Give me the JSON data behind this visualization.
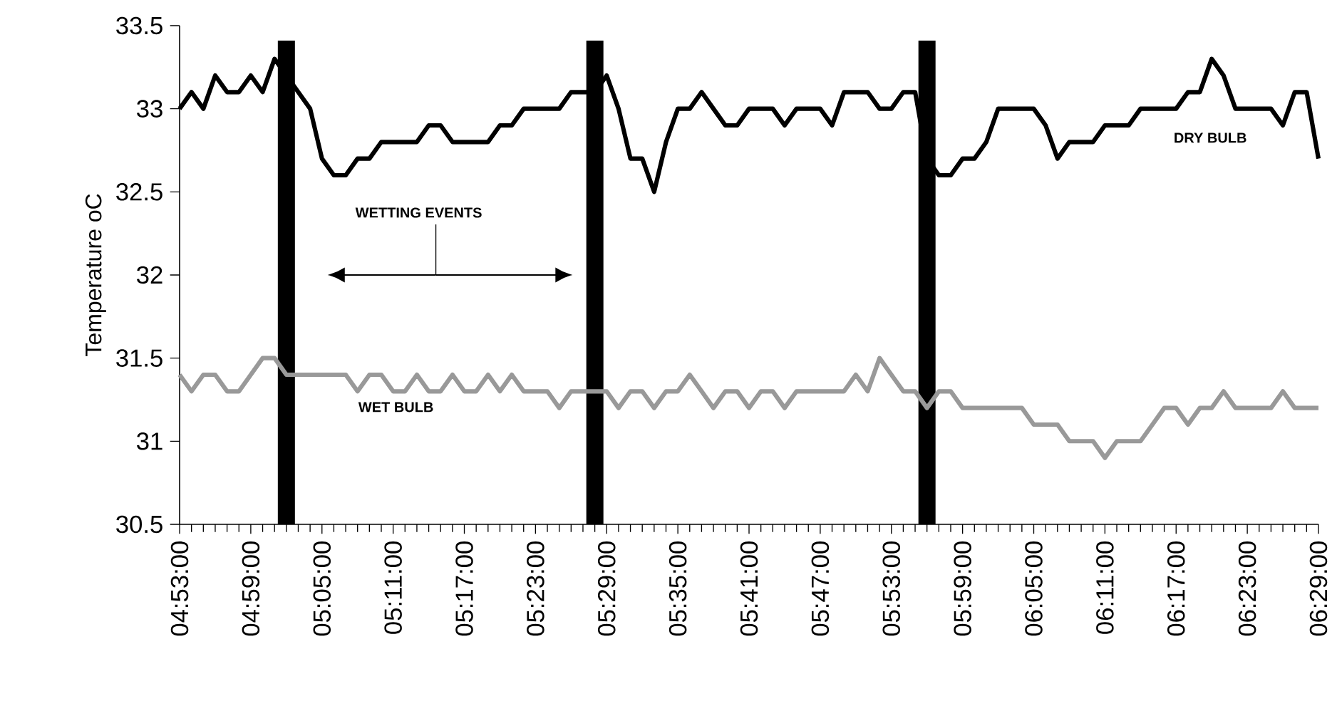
{
  "chart_data": {
    "type": "line",
    "ylabel": "Temperature oC",
    "x": [
      4.8833,
      4.9,
      4.9167,
      4.9333,
      4.95,
      4.9667,
      4.9833,
      5,
      5.0167,
      5.0333,
      5.05,
      5.0667,
      5.0833,
      5.1,
      5.1167,
      5.1333,
      5.15,
      5.1667,
      5.1833,
      5.2,
      5.2167,
      5.2333,
      5.25,
      5.2667,
      5.2833,
      5.3,
      5.3167,
      5.3333,
      5.35,
      5.3667,
      5.3833,
      5.4,
      5.4167,
      5.4333,
      5.45,
      5.4667,
      5.4833,
      5.5,
      5.5167,
      5.5333,
      5.55,
      5.5667,
      5.5833,
      5.6,
      5.6167,
      5.6333,
      5.65,
      5.6667,
      5.6833,
      5.7,
      5.7167,
      5.7333,
      5.75,
      5.7667,
      5.7833,
      5.8,
      5.8167,
      5.8333,
      5.85,
      5.8667,
      5.8833,
      5.9,
      5.9167,
      5.9333,
      5.95,
      5.9667,
      5.9833,
      6,
      6.0167,
      6.0333,
      6.05,
      6.0667,
      6.0833,
      6.1,
      6.1167,
      6.1333,
      6.15,
      6.1667,
      6.1833,
      6.2,
      6.2167,
      6.2333,
      6.25,
      6.2667,
      6.2833,
      6.3,
      6.3167,
      6.3333,
      6.35,
      6.3667,
      6.3833,
      6.4,
      6.4167,
      6.4333,
      6.45,
      6.4667,
      6.4833
    ],
    "series": [
      {
        "name": "DRY BULB",
        "color": "#000000",
        "values": [
          33.0,
          33.1,
          33.0,
          33.2,
          33.1,
          33.1,
          33.2,
          33.1,
          33.3,
          33.2,
          33.1,
          33.0,
          32.7,
          32.6,
          32.6,
          32.7,
          32.7,
          32.8,
          32.8,
          32.8,
          32.8,
          32.9,
          32.9,
          32.8,
          32.8,
          32.8,
          32.8,
          32.9,
          32.9,
          33.0,
          33.0,
          33.0,
          33.0,
          33.1,
          33.1,
          33.1,
          33.2,
          33.0,
          32.7,
          32.7,
          32.5,
          32.8,
          33.0,
          33.0,
          33.1,
          33.0,
          32.9,
          32.9,
          33.0,
          33.0,
          33.0,
          32.9,
          33.0,
          33.0,
          33.0,
          32.9,
          33.1,
          33.1,
          33.1,
          33.0,
          33.0,
          33.1,
          33.1,
          32.7,
          32.6,
          32.6,
          32.7,
          32.7,
          32.8,
          33.0,
          33.0,
          33.0,
          33.0,
          32.9,
          32.7,
          32.8,
          32.8,
          32.8,
          32.9,
          32.9,
          32.9,
          33.0,
          33.0,
          33.0,
          33.0,
          33.1,
          33.1,
          33.3,
          33.2,
          33.0,
          33.0,
          33.0,
          33.0,
          32.9,
          33.1,
          33.1,
          32.7
        ]
      },
      {
        "name": "WET BULB",
        "color": "#999999",
        "values": [
          31.4,
          31.3,
          31.4,
          31.4,
          31.3,
          31.3,
          31.4,
          31.5,
          31.5,
          31.4,
          31.4,
          31.4,
          31.4,
          31.4,
          31.4,
          31.3,
          31.4,
          31.4,
          31.3,
          31.3,
          31.4,
          31.3,
          31.3,
          31.4,
          31.3,
          31.3,
          31.4,
          31.3,
          31.4,
          31.3,
          31.3,
          31.3,
          31.2,
          31.3,
          31.3,
          31.3,
          31.3,
          31.2,
          31.3,
          31.3,
          31.2,
          31.3,
          31.3,
          31.4,
          31.3,
          31.2,
          31.3,
          31.3,
          31.2,
          31.3,
          31.3,
          31.2,
          31.3,
          31.3,
          31.3,
          31.3,
          31.3,
          31.4,
          31.3,
          31.5,
          31.4,
          31.3,
          31.3,
          31.2,
          31.3,
          31.3,
          31.2,
          31.2,
          31.2,
          31.2,
          31.2,
          31.2,
          31.1,
          31.1,
          31.1,
          31.0,
          31.0,
          31.0,
          30.9,
          31.0,
          31.0,
          31.0,
          31.1,
          31.2,
          31.2,
          31.1,
          31.2,
          31.2,
          31.3,
          31.2,
          31.2,
          31.2,
          31.2,
          31.3,
          31.2,
          31.2,
          31.2
        ]
      }
    ],
    "xlim": [
      4.8833,
      6.4833
    ],
    "xticks": [
      {
        "value": 4.8833,
        "label": "04:53:00"
      },
      {
        "value": 4.9833,
        "label": "04:59:00"
      },
      {
        "value": 5.0833,
        "label": "05:05:00"
      },
      {
        "value": 5.1833,
        "label": "05:11:00"
      },
      {
        "value": 5.2833,
        "label": "05:17:00"
      },
      {
        "value": 5.3833,
        "label": "05:23:00"
      },
      {
        "value": 5.4833,
        "label": "05:29:00"
      },
      {
        "value": 5.5833,
        "label": "05:35:00"
      },
      {
        "value": 5.6833,
        "label": "05:41:00"
      },
      {
        "value": 5.7833,
        "label": "05:47:00"
      },
      {
        "value": 5.8833,
        "label": "05:53:00"
      },
      {
        "value": 5.9833,
        "label": "05:59:00"
      },
      {
        "value": 6.0833,
        "label": "06:05:00"
      },
      {
        "value": 6.1833,
        "label": "06:11:00"
      },
      {
        "value": 6.2833,
        "label": "06:17:00"
      },
      {
        "value": 6.3833,
        "label": "06:23:00"
      },
      {
        "value": 6.4833,
        "label": "06:29:00"
      }
    ],
    "ylim": [
      30.5,
      33.5
    ],
    "yticks": [
      30.5,
      31,
      31.5,
      32,
      32.5,
      33,
      33.5
    ],
    "ref_lines": [
      {
        "axis": "x",
        "value": 5.0333,
        "color": "#000000"
      },
      {
        "axis": "x",
        "value": 5.4667,
        "color": "#000000"
      },
      {
        "axis": "x",
        "value": 5.9333,
        "color": "#000000"
      }
    ],
    "annotations": [
      "WETTING EVENTS"
    ]
  }
}
